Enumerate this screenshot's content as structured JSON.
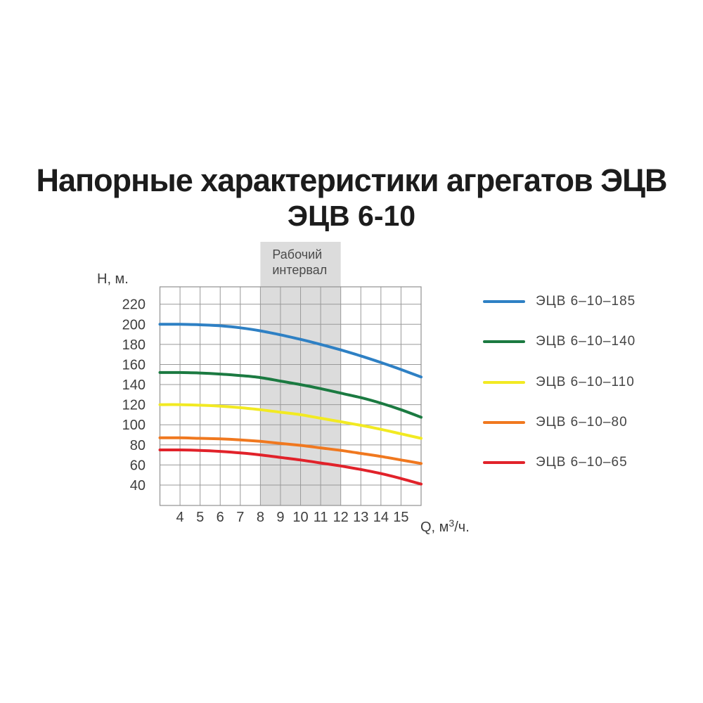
{
  "page": {
    "title": "Напорные характеристики агрегатов ЭЦВ",
    "subtitle": "ЭЦВ 6-10"
  },
  "axes": {
    "y_label": "Н, м.",
    "x_label_prefix": "Q, м",
    "x_label_sup": "3",
    "x_label_suffix": "/ч."
  },
  "working_interval": {
    "label_line1": "Рабочий",
    "label_line2": "интервал",
    "from": 8,
    "to": 12
  },
  "legend": {
    "items": [
      {
        "label": "ЭЦВ 6–10–185",
        "color": "#2e80c4"
      },
      {
        "label": "ЭЦВ 6–10–140",
        "color": "#1b7a41"
      },
      {
        "label": "ЭЦВ 6–10–110",
        "color": "#f2ea22"
      },
      {
        "label": "ЭЦВ 6–10–80",
        "color": "#f0781f"
      },
      {
        "label": "ЭЦВ 6–10–65",
        "color": "#e1222a"
      }
    ]
  },
  "chart_data": {
    "type": "line",
    "title": "Напорные характеристики агрегатов ЭЦВ",
    "subtitle": "ЭЦВ 6-10",
    "xlabel": "Q, м³/ч.",
    "ylabel": "Н, м.",
    "x": [
      3,
      4,
      5,
      6,
      7,
      8,
      9,
      10,
      11,
      12,
      13,
      14,
      15,
      16
    ],
    "x_ticks": [
      4,
      5,
      6,
      7,
      8,
      9,
      10,
      11,
      12,
      13,
      14,
      15
    ],
    "y_ticks": [
      220,
      200,
      180,
      160,
      140,
      120,
      100,
      80,
      60,
      40
    ],
    "xlim": [
      3,
      16
    ],
    "ylim": [
      20,
      236
    ],
    "grid": true,
    "legend_position": "right",
    "working_interval": [
      8,
      12
    ],
    "series": [
      {
        "name": "ЭЦВ 6–10–185",
        "color": "#2e80c4",
        "values": [
          200,
          200,
          199.5,
          198.5,
          196.5,
          193.5,
          189.5,
          185,
          180,
          174.5,
          168.5,
          162,
          155,
          147.5
        ]
      },
      {
        "name": "ЭЦВ 6–10–140",
        "color": "#1b7a41",
        "values": [
          152,
          152,
          151.5,
          150.5,
          149,
          147,
          143.5,
          140,
          136,
          131.5,
          127,
          121.5,
          115,
          107.5
        ]
      },
      {
        "name": "ЭЦВ 6–10–110",
        "color": "#f2ea22",
        "values": [
          120,
          120,
          119.5,
          118.5,
          117,
          115,
          112.5,
          110,
          106.5,
          103,
          99.5,
          95.5,
          91,
          86.5
        ]
      },
      {
        "name": "ЭЦВ 6–10–80",
        "color": "#f0781f",
        "values": [
          87,
          87,
          86.5,
          86,
          85,
          83.5,
          81.5,
          79.5,
          77,
          74.5,
          71.5,
          68.5,
          65,
          61.5
        ]
      },
      {
        "name": "ЭЦВ 6–10–65",
        "color": "#e1222a",
        "values": [
          75,
          75,
          74.5,
          73.5,
          72,
          70,
          67.5,
          65,
          62,
          59,
          55.5,
          51.5,
          46.5,
          41
        ]
      }
    ]
  },
  "colors": {
    "grid": "#999999",
    "plot_border": "#919191",
    "band": "#dcdcdc",
    "tick_text": "#3e3e3e",
    "band_text": "#4a4a4a"
  }
}
